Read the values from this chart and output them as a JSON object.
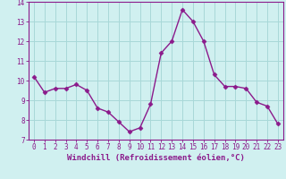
{
  "x": [
    0,
    1,
    2,
    3,
    4,
    5,
    6,
    7,
    8,
    9,
    10,
    11,
    12,
    13,
    14,
    15,
    16,
    17,
    18,
    19,
    20,
    21,
    22,
    23
  ],
  "y": [
    10.2,
    9.4,
    9.6,
    9.6,
    9.8,
    9.5,
    8.6,
    8.4,
    7.9,
    7.4,
    7.6,
    8.8,
    11.4,
    12.0,
    13.6,
    13.0,
    12.0,
    10.3,
    9.7,
    9.7,
    9.6,
    8.9,
    8.7,
    7.8
  ],
  "line_color": "#8b1a8b",
  "marker": "D",
  "marker_size": 2.5,
  "bg_color": "#d0f0f0",
  "grid_color": "#a8d8d8",
  "xlabel": "Windchill (Refroidissement éolien,°C)",
  "xlabel_color": "#8b1a8b",
  "ylim": [
    7,
    14
  ],
  "yticks": [
    7,
    8,
    9,
    10,
    11,
    12,
    13,
    14
  ],
  "xticks": [
    0,
    1,
    2,
    3,
    4,
    5,
    6,
    7,
    8,
    9,
    10,
    11,
    12,
    13,
    14,
    15,
    16,
    17,
    18,
    19,
    20,
    21,
    22,
    23
  ],
  "tick_color": "#8b1a8b",
  "tick_fontsize": 5.5,
  "xlabel_fontsize": 6.5,
  "line_width": 1.0,
  "spine_color": "#8b1a8b"
}
